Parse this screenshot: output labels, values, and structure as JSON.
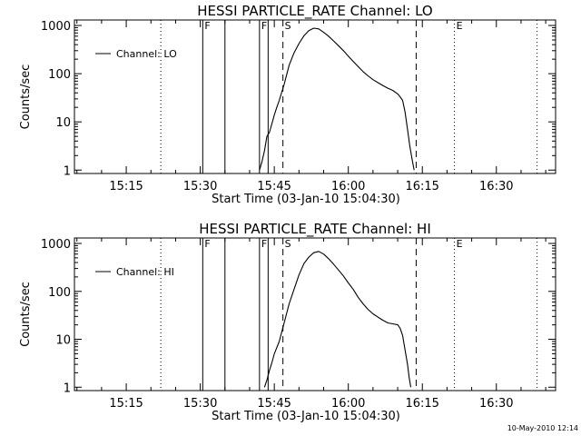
{
  "timestamp": "10-May-2010 12:14",
  "chart_data": [
    {
      "type": "line",
      "title": "HESSI PARTICLE_RATE Channel: LO",
      "xlabel": "Start Time (03-Jan-10 15:04:30)",
      "ylabel": "Counts/sec",
      "yscale": "log",
      "xlim": [
        "15:04:30",
        "16:42:00"
      ],
      "ylim": [
        0.85,
        1300
      ],
      "xticks": [
        "15:15",
        "15:30",
        "15:45",
        "16:00",
        "16:15",
        "16:30"
      ],
      "yticks": [
        "1",
        "10",
        "100",
        "1000"
      ],
      "legend": "Channel: LO",
      "legend_position": "top-left",
      "markers": [
        {
          "time": "15:22:00",
          "style": "dotted",
          "label": ""
        },
        {
          "time": "15:30:30",
          "style": "solid",
          "label": "F"
        },
        {
          "time": "15:35:00",
          "style": "solid",
          "label": ""
        },
        {
          "time": "15:42:00",
          "style": "solid",
          "label": "F"
        },
        {
          "time": "15:43:45",
          "style": "solid",
          "label": ""
        },
        {
          "time": "15:46:45",
          "style": "dashed",
          "label": "S"
        },
        {
          "time": "16:13:45",
          "style": "dashed",
          "label": ""
        },
        {
          "time": "16:21:30",
          "style": "dotted",
          "label": "E"
        },
        {
          "time": "16:38:15",
          "style": "dotted",
          "label": ""
        }
      ],
      "series": [
        {
          "name": "Channel: LO",
          "x": [
            "15:42:00",
            "15:42:30",
            "15:43:00",
            "15:43:30",
            "15:44:00",
            "15:44:30",
            "15:45:00",
            "15:45:30",
            "15:46:00",
            "15:47:00",
            "15:48:00",
            "15:49:00",
            "15:50:00",
            "15:51:00",
            "15:52:00",
            "15:53:00",
            "15:54:00",
            "15:55:00",
            "15:56:00",
            "15:57:00",
            "15:58:00",
            "15:59:00",
            "16:00:00",
            "16:01:00",
            "16:02:00",
            "16:03:00",
            "16:04:00",
            "16:05:00",
            "16:06:00",
            "16:07:00",
            "16:08:00",
            "16:09:00",
            "16:10:00",
            "16:10:30",
            "16:11:00",
            "16:11:30",
            "16:12:00",
            "16:12:30",
            "16:13:00",
            "16:13:20"
          ],
          "values": [
            1.0,
            1.5,
            2.5,
            5,
            6,
            9,
            14,
            20,
            28,
            60,
            150,
            270,
            420,
            610,
            780,
            880,
            850,
            720,
            600,
            480,
            380,
            300,
            230,
            180,
            140,
            110,
            90,
            75,
            65,
            57,
            50,
            45,
            38,
            33,
            28,
            16,
            7,
            3,
            1.5,
            1.0
          ]
        }
      ]
    },
    {
      "type": "line",
      "title": "HESSI PARTICLE_RATE Channel: HI",
      "xlabel": "Start Time (03-Jan-10 15:04:30)",
      "ylabel": "Counts/sec",
      "yscale": "log",
      "xlim": [
        "15:04:30",
        "16:42:00"
      ],
      "ylim": [
        0.85,
        1300
      ],
      "xticks": [
        "15:15",
        "15:30",
        "15:45",
        "16:00",
        "16:15",
        "16:30"
      ],
      "yticks": [
        "1",
        "10",
        "100",
        "1000"
      ],
      "legend": "Channel: HI",
      "legend_position": "top-left",
      "markers": [
        {
          "time": "15:22:00",
          "style": "dotted",
          "label": ""
        },
        {
          "time": "15:30:30",
          "style": "solid",
          "label": "F"
        },
        {
          "time": "15:35:00",
          "style": "solid",
          "label": ""
        },
        {
          "time": "15:42:00",
          "style": "solid",
          "label": "F"
        },
        {
          "time": "15:43:45",
          "style": "solid",
          "label": ""
        },
        {
          "time": "15:46:45",
          "style": "dashed",
          "label": "S"
        },
        {
          "time": "16:13:45",
          "style": "dashed",
          "label": ""
        },
        {
          "time": "16:21:30",
          "style": "dotted",
          "label": "E"
        },
        {
          "time": "16:38:15",
          "style": "dotted",
          "label": ""
        }
      ],
      "series": [
        {
          "name": "Channel: HI",
          "x": [
            "15:43:00",
            "15:43:30",
            "15:44:00",
            "15:44:30",
            "15:45:00",
            "15:46:00",
            "15:47:00",
            "15:48:00",
            "15:49:00",
            "15:50:00",
            "15:51:00",
            "15:52:00",
            "15:53:00",
            "15:54:00",
            "15:55:00",
            "15:56:00",
            "15:57:00",
            "15:58:00",
            "15:59:00",
            "16:00:00",
            "16:01:00",
            "16:02:00",
            "16:03:00",
            "16:04:00",
            "16:05:00",
            "16:06:00",
            "16:07:00",
            "16:08:00",
            "16:09:00",
            "16:10:00",
            "16:10:30",
            "16:11:00",
            "16:11:30",
            "16:12:00",
            "16:12:20",
            "16:12:40"
          ],
          "values": [
            1.0,
            1.4,
            2.2,
            3.2,
            5,
            9,
            22,
            55,
            110,
            220,
            380,
            520,
            640,
            680,
            600,
            480,
            370,
            280,
            210,
            150,
            110,
            75,
            55,
            42,
            34,
            29,
            25,
            22,
            21,
            20,
            17,
            12,
            6,
            3,
            1.6,
            1.0
          ]
        }
      ]
    }
  ]
}
